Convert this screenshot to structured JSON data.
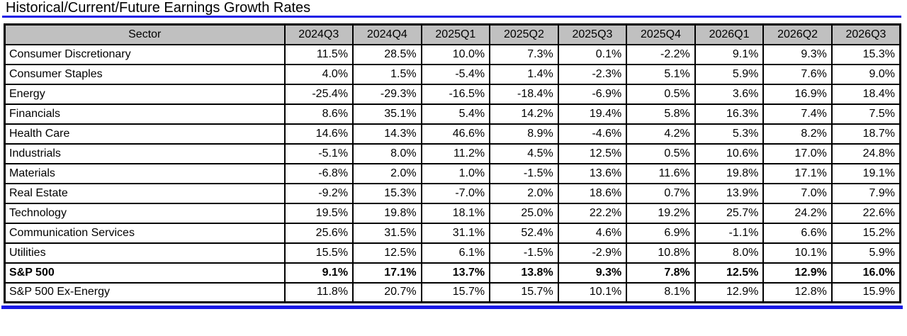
{
  "title": "Historical/Current/Future Earnings Growth Rates",
  "colors": {
    "accent_blue": "#1a1ae6",
    "header_bg": "#c0c0c0",
    "grid": "#000000"
  },
  "chart_data": {
    "type": "table",
    "title": "Historical/Current/Future Earnings Growth Rates",
    "columns": [
      "Sector",
      "2024Q3",
      "2024Q4",
      "2025Q1",
      "2025Q2",
      "2025Q3",
      "2025Q4",
      "2026Q1",
      "2026Q2",
      "2026Q3"
    ],
    "rows": [
      {
        "sector": "Consumer Discretionary",
        "bold": false,
        "values": [
          "11.5%",
          "28.5%",
          "10.0%",
          "7.3%",
          "0.1%",
          "-2.2%",
          "9.1%",
          "9.3%",
          "15.3%"
        ]
      },
      {
        "sector": "Consumer Staples",
        "bold": false,
        "values": [
          "4.0%",
          "1.5%",
          "-5.4%",
          "1.4%",
          "-2.3%",
          "5.1%",
          "5.9%",
          "7.6%",
          "9.0%"
        ]
      },
      {
        "sector": "Energy",
        "bold": false,
        "values": [
          "-25.4%",
          "-29.3%",
          "-16.5%",
          "-18.4%",
          "-6.9%",
          "0.5%",
          "3.6%",
          "16.9%",
          "18.4%"
        ]
      },
      {
        "sector": "Financials",
        "bold": false,
        "values": [
          "8.6%",
          "35.1%",
          "5.4%",
          "14.2%",
          "19.4%",
          "5.8%",
          "16.3%",
          "7.4%",
          "7.5%"
        ]
      },
      {
        "sector": "Health Care",
        "bold": false,
        "values": [
          "14.6%",
          "14.3%",
          "46.6%",
          "8.9%",
          "-4.6%",
          "4.2%",
          "5.3%",
          "8.2%",
          "18.7%"
        ]
      },
      {
        "sector": "Industrials",
        "bold": false,
        "values": [
          "-5.1%",
          "8.0%",
          "11.2%",
          "4.5%",
          "12.5%",
          "0.5%",
          "10.6%",
          "17.0%",
          "24.8%"
        ]
      },
      {
        "sector": "Materials",
        "bold": false,
        "values": [
          "-6.8%",
          "2.0%",
          "1.0%",
          "-1.5%",
          "13.6%",
          "11.6%",
          "19.8%",
          "17.1%",
          "19.1%"
        ]
      },
      {
        "sector": "Real Estate",
        "bold": false,
        "values": [
          "-9.2%",
          "15.3%",
          "-7.0%",
          "2.0%",
          "18.6%",
          "0.7%",
          "13.9%",
          "7.0%",
          "7.9%"
        ]
      },
      {
        "sector": "Technology",
        "bold": false,
        "values": [
          "19.5%",
          "19.8%",
          "18.1%",
          "25.0%",
          "22.2%",
          "19.2%",
          "25.7%",
          "24.2%",
          "22.6%"
        ]
      },
      {
        "sector": "Communication Services",
        "bold": false,
        "values": [
          "25.6%",
          "31.5%",
          "31.1%",
          "52.4%",
          "4.6%",
          "6.9%",
          "-1.1%",
          "6.6%",
          "15.2%"
        ]
      },
      {
        "sector": "Utilities",
        "bold": false,
        "values": [
          "15.5%",
          "12.5%",
          "6.1%",
          "-1.5%",
          "-2.9%",
          "10.8%",
          "8.0%",
          "10.1%",
          "5.9%"
        ]
      },
      {
        "sector": "S&P 500",
        "bold": true,
        "values": [
          "9.1%",
          "17.1%",
          "13.7%",
          "13.8%",
          "9.3%",
          "7.8%",
          "12.5%",
          "12.9%",
          "16.0%"
        ]
      },
      {
        "sector": "S&P 500 Ex-Energy",
        "bold": false,
        "values": [
          "11.8%",
          "20.7%",
          "15.7%",
          "15.7%",
          "10.1%",
          "8.1%",
          "12.9%",
          "12.8%",
          "15.9%"
        ]
      }
    ]
  }
}
